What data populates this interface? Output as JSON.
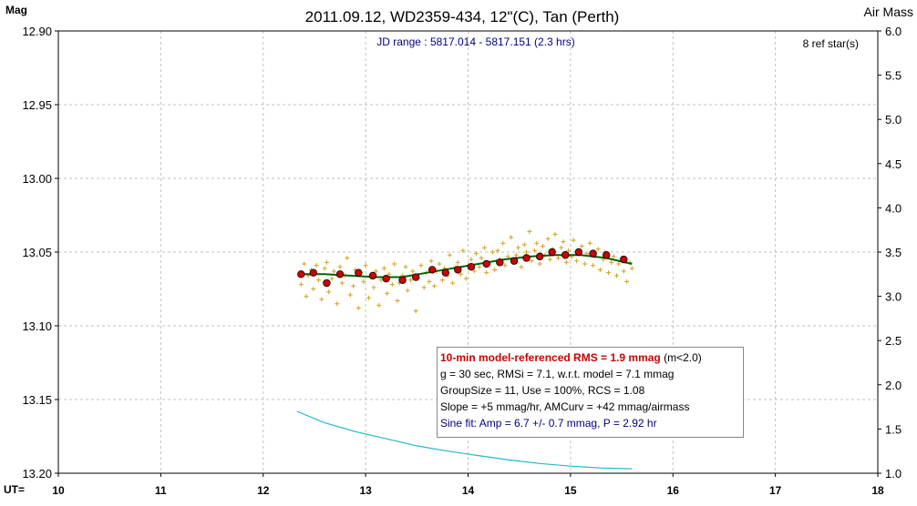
{
  "chart_data": {
    "type": "scatter",
    "title": "2011.09.12, WD2359-434, 12\"(C), Tan (Perth)",
    "subtitle": "JD range : 5817.014 - 5817.151 (2.3 hrs)",
    "ref_stars": "8 ref star(s)",
    "ylabel_left": "Mag",
    "ylabel_right": "Air Mass",
    "xlabel": "UT=",
    "xlim": [
      10,
      18
    ],
    "ylim_left": [
      12.9,
      13.2
    ],
    "ylim_left_inverted": true,
    "ylim_right": [
      1.0,
      6.0
    ],
    "x_ticks": [
      "10",
      "11",
      "12",
      "13",
      "14",
      "15",
      "16",
      "17",
      "18"
    ],
    "y_ticks_left": [
      "12.90",
      "12.95",
      "13.00",
      "13.05",
      "13.10",
      "13.15",
      "13.20"
    ],
    "y_ticks_right": [
      "6.0",
      "5.5",
      "5.0",
      "4.5",
      "4.0",
      "3.5",
      "3.0",
      "2.5",
      "2.0",
      "1.5",
      "1.0"
    ],
    "grid": true,
    "colors": {
      "points": "#d4a020",
      "binned": "#cc0000",
      "model": "#006400",
      "airmass": "#22b8d0",
      "grid": "#c0c0c0",
      "title_text": "#000000",
      "subtitle_text": "#000080"
    },
    "series": [
      {
        "kind": "raw",
        "x": [
          12.37,
          12.4,
          12.42,
          12.44,
          12.47,
          12.49,
          12.52,
          12.54,
          12.57,
          12.6,
          12.62,
          12.64,
          12.67,
          12.69,
          12.72,
          12.75,
          12.77,
          12.8,
          12.82,
          12.85,
          12.88,
          12.9,
          12.93,
          12.95,
          12.98,
          13.0,
          13.03,
          13.05,
          13.08,
          13.1,
          13.13,
          13.15,
          13.18,
          13.21,
          13.23,
          13.26,
          13.28,
          13.31,
          13.33,
          13.36,
          13.39,
          13.41,
          13.44,
          13.46,
          13.49,
          13.51,
          13.54,
          13.57,
          13.59,
          13.62,
          13.64,
          13.67,
          13.69,
          13.72,
          13.75,
          13.77,
          13.8,
          13.82,
          13.85,
          13.88,
          13.9,
          13.93,
          13.95,
          13.98,
          14.0,
          14.03,
          14.06,
          14.08,
          14.11,
          14.13,
          14.16,
          14.18,
          14.21,
          14.24,
          14.26,
          14.29,
          14.31,
          14.34,
          14.36,
          14.39,
          14.42,
          14.44,
          14.47,
          14.49,
          14.52,
          14.55,
          14.57,
          14.6,
          14.62,
          14.65,
          14.67,
          14.7,
          14.73,
          14.75,
          14.78,
          14.8,
          14.83,
          14.85,
          14.88,
          14.91,
          14.93,
          14.96,
          14.98,
          15.01,
          15.03,
          15.06,
          15.09,
          15.11,
          15.14,
          15.16,
          15.19,
          15.22,
          15.24,
          15.27,
          15.29,
          15.32,
          15.34,
          15.37,
          15.4,
          15.42,
          15.45,
          15.47,
          15.5,
          15.52,
          15.55,
          15.58,
          15.6
        ],
        "y": [
          13.072,
          13.058,
          13.08,
          13.066,
          13.062,
          13.075,
          13.059,
          13.069,
          13.082,
          13.061,
          13.057,
          13.077,
          13.068,
          13.063,
          13.085,
          13.06,
          13.071,
          13.066,
          13.054,
          13.079,
          13.073,
          13.062,
          13.088,
          13.064,
          13.07,
          13.059,
          13.081,
          13.067,
          13.074,
          13.063,
          13.086,
          13.069,
          13.061,
          13.078,
          13.065,
          13.072,
          13.058,
          13.083,
          13.071,
          13.066,
          13.06,
          13.076,
          13.069,
          13.063,
          13.09,
          13.068,
          13.059,
          13.074,
          13.064,
          13.07,
          13.056,
          13.073,
          13.063,
          13.058,
          13.069,
          13.061,
          13.066,
          13.052,
          13.071,
          13.06,
          13.057,
          13.065,
          13.049,
          13.068,
          13.059,
          13.055,
          13.063,
          13.051,
          13.06,
          13.054,
          13.047,
          13.064,
          13.058,
          13.05,
          13.062,
          13.049,
          13.055,
          13.044,
          13.059,
          13.053,
          13.04,
          13.057,
          13.052,
          13.047,
          13.06,
          13.045,
          13.05,
          13.036,
          13.056,
          13.049,
          13.044,
          13.058,
          13.046,
          13.052,
          13.041,
          13.055,
          13.048,
          13.038,
          13.054,
          13.047,
          13.043,
          13.057,
          13.049,
          13.053,
          13.042,
          13.056,
          13.05,
          13.046,
          13.058,
          13.051,
          13.044,
          13.059,
          13.053,
          13.048,
          13.062,
          13.055,
          13.05,
          13.064,
          13.057,
          13.053,
          13.066,
          13.058,
          13.054,
          13.063,
          13.07,
          13.057,
          13.061
        ]
      },
      {
        "kind": "binned",
        "x": [
          12.37,
          12.49,
          12.62,
          12.75,
          12.93,
          13.07,
          13.2,
          13.36,
          13.49,
          13.65,
          13.78,
          13.9,
          14.03,
          14.18,
          14.31,
          14.45,
          14.57,
          14.7,
          14.82,
          14.95,
          15.08,
          15.22,
          15.35,
          15.52
        ],
        "y": [
          13.065,
          13.064,
          13.071,
          13.065,
          13.064,
          13.066,
          13.068,
          13.069,
          13.067,
          13.062,
          13.064,
          13.062,
          13.06,
          13.058,
          13.057,
          13.056,
          13.054,
          13.053,
          13.05,
          13.052,
          13.05,
          13.051,
          13.052,
          13.055
        ]
      },
      {
        "kind": "model",
        "x": [
          12.37,
          12.6,
          12.85,
          13.1,
          13.35,
          13.6,
          13.85,
          14.1,
          14.35,
          14.6,
          14.85,
          15.1,
          15.35,
          15.6
        ],
        "y": [
          13.065,
          13.065,
          13.066,
          13.067,
          13.067,
          13.064,
          13.061,
          13.058,
          13.055,
          13.053,
          13.052,
          13.052,
          13.054,
          13.058
        ]
      },
      {
        "kind": "airmass",
        "axis": "right",
        "x": [
          12.33,
          12.6,
          12.9,
          13.2,
          13.5,
          13.8,
          14.1,
          14.4,
          14.7,
          15.0,
          15.3,
          15.6
        ],
        "y": [
          1.7,
          1.57,
          1.47,
          1.39,
          1.31,
          1.25,
          1.2,
          1.15,
          1.11,
          1.08,
          1.06,
          1.05
        ]
      }
    ]
  },
  "stats": {
    "rms_bold": "10-min model-referenced RMS = 1.9 mmag",
    "rms_suffix": " (m<2.0)",
    "line2": "g = 30 sec, RMSi = 7.1, w.r.t. model = 7.1 mmag",
    "line3": "GroupSize = 11, Use = 100%, RCS = 1.08",
    "line4": "Slope = +5 mmag/hr, AMCurv = +42 mmag/airmass",
    "line5": "Sine fit: Amp = 6.7 +/- 0.7 mmag, P = 2.92 hr"
  }
}
